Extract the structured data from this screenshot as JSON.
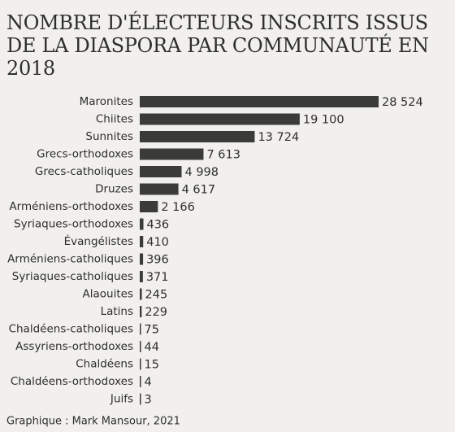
{
  "chart_data": {
    "type": "barh",
    "title": "NOMBRE D'ÉLECTEURS INSCRITS ISSUS DE LA DIASPORA PAR COMMUNAUTÉ EN 2018",
    "categories": [
      "Maronites",
      "Chiites",
      "Sunnites",
      "Grecs-orthodoxes",
      "Grecs-catholiques",
      "Druzes",
      "Arméniens-orthodoxes",
      "Syriaques-orthodoxes",
      "Évangélistes",
      "Arméniens-catholiques",
      "Syriaques-catholiques",
      "Alaouites",
      "Latins",
      "Chaldéens-catholiques",
      "Assyriens-orthodoxes",
      "Chaldéens",
      "Chaldéens-orthodoxes",
      "Juifs"
    ],
    "values": [
      28524,
      19100,
      13724,
      7613,
      4998,
      4617,
      2166,
      436,
      410,
      396,
      371,
      245,
      229,
      75,
      44,
      15,
      4,
      3
    ],
    "value_labels": [
      "28 524",
      "19 100",
      "13 724",
      "7 613",
      "4 998",
      "4 617",
      "2 166",
      "436",
      "410",
      "396",
      "371",
      "245",
      "229",
      "75",
      "44",
      "15",
      "4",
      "3"
    ],
    "color": "#3b3b37",
    "source": "Graphique : Mark Mansour, 2021"
  }
}
